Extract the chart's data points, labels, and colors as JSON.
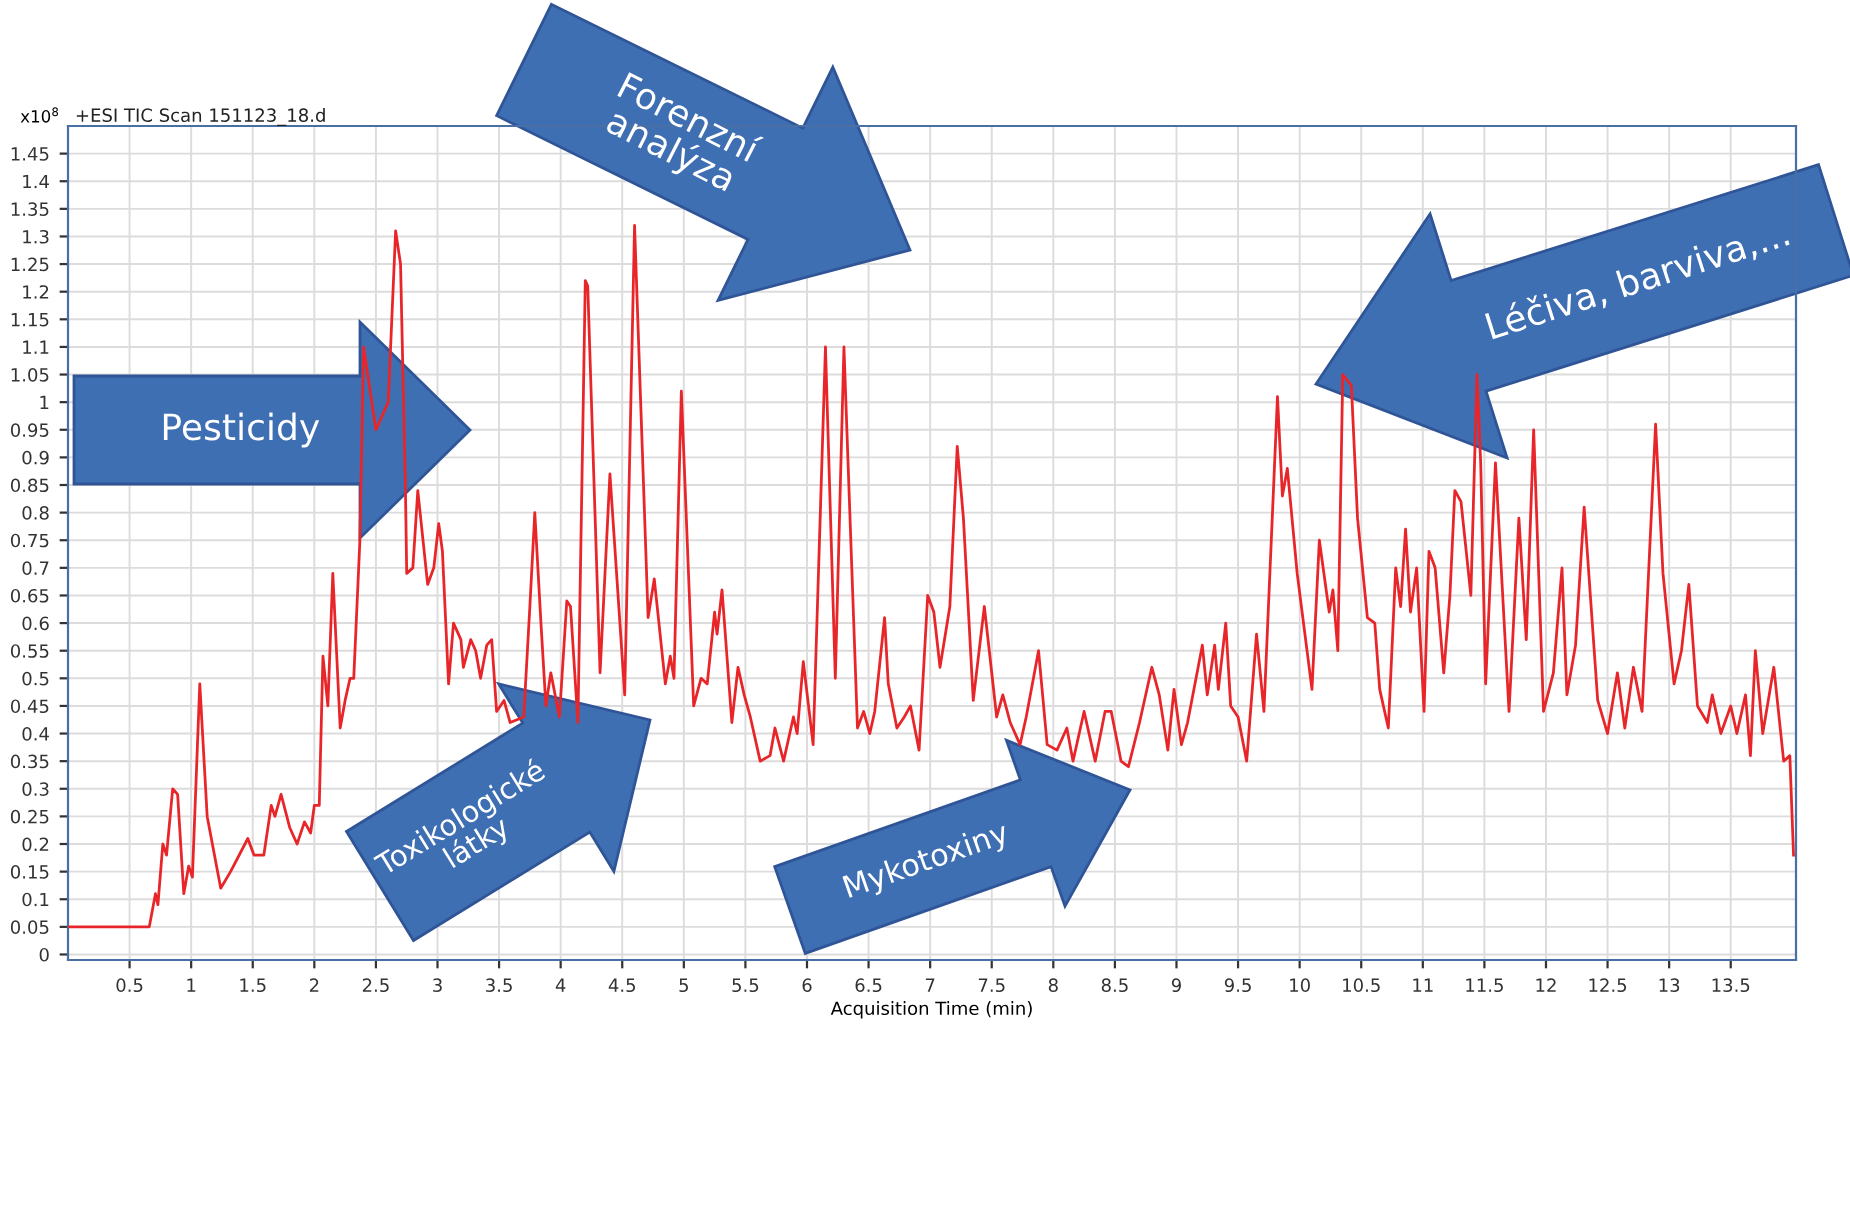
{
  "chart_data": {
    "type": "line",
    "title": "+ESI TIC Scan 151123_18.d",
    "xlabel": "Acquisition Time (min)",
    "ylabel": "x10$^{8}$",
    "annotations": [
      "Pesticidy",
      "Forenzní\nanalýza",
      "Léčiva, barviva,...",
      "Toxikologické\nlátky",
      "Mykotoxiny"
    ],
    "series": [
      {
        "color": "#e8262a",
        "x": [
          0.01,
          0.66,
          0.71,
          0.73,
          0.77,
          0.8,
          0.85,
          0.89,
          0.94,
          0.98,
          1.01,
          1.07,
          1.13,
          1.24,
          1.32,
          1.46,
          1.51,
          1.59,
          1.65,
          1.68,
          1.73,
          1.8,
          1.86,
          1.92,
          1.97,
          2.0,
          2.04,
          2.07,
          2.11,
          2.15,
          2.18,
          2.21,
          2.25,
          2.29,
          2.32,
          2.37,
          2.4,
          2.5,
          2.6,
          2.66,
          2.7,
          2.74,
          2.75,
          2.8,
          2.84,
          2.92,
          2.97,
          3.01,
          3.04,
          3.09,
          3.13,
          3.19,
          3.21,
          3.27,
          3.31,
          3.35,
          3.4,
          3.44,
          3.48,
          3.54,
          3.59,
          3.7,
          3.75,
          3.79,
          3.84,
          3.88,
          3.92,
          3.99,
          4.05,
          4.08,
          4.14,
          4.2,
          4.22,
          4.32,
          4.4,
          4.52,
          4.6,
          4.71,
          4.76,
          4.85,
          4.89,
          4.92,
          4.98,
          5.08,
          5.14,
          5.19,
          5.25,
          5.27,
          5.31,
          5.39,
          5.44,
          5.49,
          5.54,
          5.62,
          5.7,
          5.74,
          5.81,
          5.89,
          5.92,
          5.97,
          6.05,
          6.15,
          6.23,
          6.3,
          6.41,
          6.46,
          6.51,
          6.55,
          6.63,
          6.66,
          6.73,
          6.79,
          6.84,
          6.91,
          6.98,
          7.03,
          7.08,
          7.16,
          7.22,
          7.27,
          7.35,
          7.44,
          7.54,
          7.59,
          7.65,
          7.73,
          7.78,
          7.88,
          7.95,
          8.03,
          8.11,
          8.16,
          8.25,
          8.34,
          8.42,
          8.47,
          8.55,
          8.61,
          8.7,
          8.8,
          8.86,
          8.93,
          8.98,
          9.04,
          9.09,
          9.21,
          9.25,
          9.31,
          9.34,
          9.4,
          9.44,
          9.5,
          9.57,
          9.65,
          9.71,
          9.82,
          9.86,
          9.9,
          9.98,
          10.1,
          10.16,
          10.24,
          10.27,
          10.31,
          10.35,
          10.42,
          10.47,
          10.55,
          10.61,
          10.65,
          10.72,
          10.78,
          10.82,
          10.86,
          10.9,
          10.95,
          11.01,
          11.05,
          11.1,
          11.17,
          11.22,
          11.26,
          11.31,
          11.39,
          11.44,
          11.47,
          11.51,
          11.59,
          11.7,
          11.78,
          11.84,
          11.9,
          11.98,
          12.06,
          12.13,
          12.17,
          12.24,
          12.31,
          12.42,
          12.5,
          12.58,
          12.64,
          12.71,
          12.78,
          12.89,
          12.95,
          13.04,
          13.1,
          13.16,
          13.23,
          13.31,
          13.35,
          13.42,
          13.5,
          13.55,
          13.62,
          13.66,
          13.7,
          13.76,
          13.85,
          13.93,
          13.98,
          14.01
        ],
        "values": [
          0.05,
          0.05,
          0.11,
          0.09,
          0.2,
          0.18,
          0.3,
          0.29,
          0.11,
          0.16,
          0.14,
          0.49,
          0.25,
          0.12,
          0.15,
          0.21,
          0.18,
          0.18,
          0.27,
          0.25,
          0.29,
          0.23,
          0.2,
          0.24,
          0.22,
          0.27,
          0.27,
          0.54,
          0.45,
          0.69,
          0.55,
          0.41,
          0.46,
          0.5,
          0.5,
          0.75,
          1.1,
          0.95,
          1.0,
          1.31,
          1.25,
          0.84,
          0.69,
          0.7,
          0.84,
          0.67,
          0.7,
          0.78,
          0.73,
          0.49,
          0.6,
          0.57,
          0.52,
          0.57,
          0.55,
          0.5,
          0.56,
          0.57,
          0.44,
          0.46,
          0.42,
          0.43,
          0.63,
          0.8,
          0.6,
          0.45,
          0.51,
          0.43,
          0.64,
          0.63,
          0.42,
          1.22,
          1.21,
          0.51,
          0.87,
          0.47,
          1.32,
          0.61,
          0.68,
          0.49,
          0.54,
          0.5,
          1.02,
          0.45,
          0.5,
          0.49,
          0.62,
          0.58,
          0.66,
          0.42,
          0.52,
          0.47,
          0.43,
          0.35,
          0.36,
          0.41,
          0.35,
          0.43,
          0.4,
          0.53,
          0.38,
          1.1,
          0.5,
          1.1,
          0.41,
          0.44,
          0.4,
          0.44,
          0.61,
          0.49,
          0.41,
          0.43,
          0.45,
          0.37,
          0.65,
          0.62,
          0.52,
          0.63,
          0.92,
          0.79,
          0.46,
          0.63,
          0.43,
          0.47,
          0.42,
          0.38,
          0.43,
          0.55,
          0.38,
          0.37,
          0.41,
          0.35,
          0.44,
          0.35,
          0.44,
          0.44,
          0.35,
          0.34,
          0.42,
          0.52,
          0.47,
          0.37,
          0.48,
          0.38,
          0.42,
          0.56,
          0.47,
          0.56,
          0.48,
          0.6,
          0.45,
          0.43,
          0.35,
          0.58,
          0.44,
          1.01,
          0.83,
          0.88,
          0.69,
          0.48,
          0.75,
          0.62,
          0.66,
          0.55,
          1.05,
          1.03,
          0.79,
          0.61,
          0.6,
          0.48,
          0.41,
          0.7,
          0.63,
          0.77,
          0.62,
          0.7,
          0.44,
          0.73,
          0.7,
          0.51,
          0.65,
          0.84,
          0.82,
          0.65,
          1.05,
          0.89,
          0.49,
          0.89,
          0.44,
          0.79,
          0.57,
          0.95,
          0.44,
          0.51,
          0.7,
          0.47,
          0.56,
          0.81,
          0.46,
          0.4,
          0.51,
          0.41,
          0.52,
          0.44,
          0.96,
          0.69,
          0.49,
          0.55,
          0.67,
          0.45,
          0.42,
          0.47,
          0.4,
          0.45,
          0.4,
          0.47,
          0.36,
          0.55,
          0.4,
          0.52,
          0.35,
          0.36,
          0.18
        ]
      }
    ],
    "xlim": [
      0,
      14.03
    ],
    "ylim": [
      -0.01,
      1.5
    ],
    "xticks": [
      0.5,
      1,
      1.5,
      2,
      2.5,
      3,
      3.5,
      4,
      4.5,
      5,
      5.5,
      6,
      6.5,
      7,
      7.5,
      8,
      8.5,
      9,
      9.5,
      10,
      10.5,
      11,
      11.5,
      12,
      12.5,
      13,
      13.5
    ],
    "yticks": [
      0,
      0.05,
      0.1,
      0.15,
      0.2,
      0.25,
      0.3,
      0.35,
      0.4,
      0.45,
      0.5,
      0.55,
      0.6,
      0.65,
      0.7,
      0.75,
      0.8,
      0.85,
      0.9,
      0.95,
      1,
      1.05,
      1.1,
      1.15,
      1.2,
      1.25,
      1.3,
      1.35,
      1.4,
      1.45
    ],
    "grid": true,
    "line_style": "solid",
    "marker": "none",
    "legend": false
  }
}
